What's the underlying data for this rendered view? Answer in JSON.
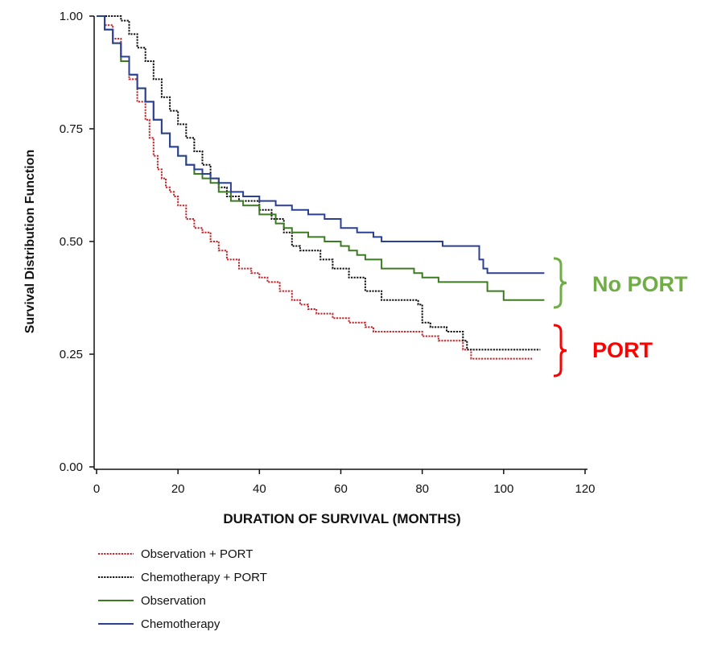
{
  "chart_data": {
    "type": "line",
    "subtype": "kaplan-meier step curves",
    "title": "",
    "xlabel": "DURATION OF SURVIVAL (MONTHS)",
    "ylabel": "Survival Distribution Function",
    "xlim": [
      0,
      120
    ],
    "ylim": [
      0,
      1
    ],
    "x_ticks": [
      0,
      20,
      40,
      60,
      80,
      100,
      120
    ],
    "y_ticks": [
      "0.00",
      "0.25",
      "0.50",
      "0.75",
      "1.00"
    ],
    "grid": false,
    "legend_position": "bottom-left",
    "series": [
      {
        "name": "Observation + PORT",
        "color": "#c0282d",
        "dashed": true,
        "x": [
          0,
          2,
          4,
          6,
          8,
          10,
          12,
          13,
          14,
          15,
          16,
          17,
          18,
          19,
          20,
          22,
          24,
          26,
          28,
          30,
          32,
          35,
          38,
          40,
          42,
          45,
          48,
          50,
          52,
          54,
          56,
          58,
          60,
          62,
          64,
          66,
          68,
          70,
          75,
          80,
          84,
          88,
          90,
          92,
          94,
          100,
          107
        ],
        "y": [
          1.0,
          0.98,
          0.95,
          0.9,
          0.86,
          0.81,
          0.77,
          0.73,
          0.69,
          0.66,
          0.64,
          0.62,
          0.61,
          0.6,
          0.58,
          0.55,
          0.53,
          0.52,
          0.5,
          0.48,
          0.46,
          0.44,
          0.43,
          0.42,
          0.41,
          0.39,
          0.37,
          0.36,
          0.35,
          0.34,
          0.34,
          0.33,
          0.33,
          0.32,
          0.32,
          0.31,
          0.3,
          0.3,
          0.3,
          0.29,
          0.28,
          0.28,
          0.26,
          0.24,
          0.24,
          0.24,
          0.24
        ]
      },
      {
        "name": "Chemotherapy + PORT",
        "color": "#111111",
        "dashed": true,
        "x": [
          0,
          6,
          8,
          10,
          12,
          14,
          16,
          18,
          20,
          22,
          24,
          26,
          28,
          30,
          32,
          35,
          40,
          43,
          46,
          48,
          50,
          55,
          58,
          62,
          66,
          70,
          75,
          79,
          80,
          82,
          86,
          90,
          91,
          95,
          100,
          109
        ],
        "y": [
          1.0,
          0.99,
          0.96,
          0.93,
          0.9,
          0.86,
          0.82,
          0.79,
          0.76,
          0.73,
          0.7,
          0.67,
          0.64,
          0.62,
          0.6,
          0.59,
          0.57,
          0.55,
          0.52,
          0.49,
          0.48,
          0.46,
          0.44,
          0.42,
          0.39,
          0.37,
          0.37,
          0.36,
          0.32,
          0.31,
          0.3,
          0.28,
          0.26,
          0.26,
          0.26,
          0.26
        ]
      },
      {
        "name": "Observation",
        "color": "#3d7b22",
        "dashed": false,
        "x": [
          0,
          2,
          4,
          6,
          8,
          10,
          12,
          14,
          16,
          18,
          20,
          22,
          24,
          26,
          28,
          30,
          33,
          36,
          40,
          44,
          46,
          48,
          52,
          56,
          60,
          62,
          64,
          66,
          70,
          75,
          78,
          80,
          84,
          90,
          96,
          100,
          110
        ],
        "y": [
          1.0,
          0.97,
          0.94,
          0.9,
          0.87,
          0.84,
          0.81,
          0.77,
          0.74,
          0.71,
          0.69,
          0.67,
          0.65,
          0.64,
          0.63,
          0.61,
          0.59,
          0.58,
          0.56,
          0.54,
          0.53,
          0.52,
          0.51,
          0.5,
          0.49,
          0.48,
          0.47,
          0.46,
          0.44,
          0.44,
          0.43,
          0.42,
          0.41,
          0.41,
          0.39,
          0.37,
          0.37
        ]
      },
      {
        "name": "Chemotherapy",
        "color": "#2b3f93",
        "dashed": false,
        "x": [
          0,
          2,
          4,
          6,
          8,
          10,
          12,
          14,
          16,
          18,
          20,
          22,
          24,
          26,
          28,
          30,
          33,
          36,
          40,
          44,
          48,
          52,
          56,
          60,
          64,
          68,
          70,
          75,
          80,
          85,
          90,
          94,
          95,
          96,
          100,
          110
        ],
        "y": [
          1.0,
          0.97,
          0.94,
          0.91,
          0.87,
          0.84,
          0.81,
          0.77,
          0.74,
          0.71,
          0.69,
          0.67,
          0.66,
          0.65,
          0.64,
          0.63,
          0.61,
          0.6,
          0.59,
          0.58,
          0.57,
          0.56,
          0.55,
          0.53,
          0.52,
          0.51,
          0.5,
          0.5,
          0.5,
          0.49,
          0.49,
          0.46,
          0.44,
          0.43,
          0.43,
          0.43
        ]
      }
    ],
    "annotations": [
      {
        "text": "No PORT",
        "color": "#70ad47",
        "applies_to": [
          "Observation",
          "Chemotherapy"
        ]
      },
      {
        "text": "PORT",
        "color": "#ff0000",
        "applies_to": [
          "Observation + PORT",
          "Chemotherapy + PORT"
        ]
      }
    ]
  }
}
